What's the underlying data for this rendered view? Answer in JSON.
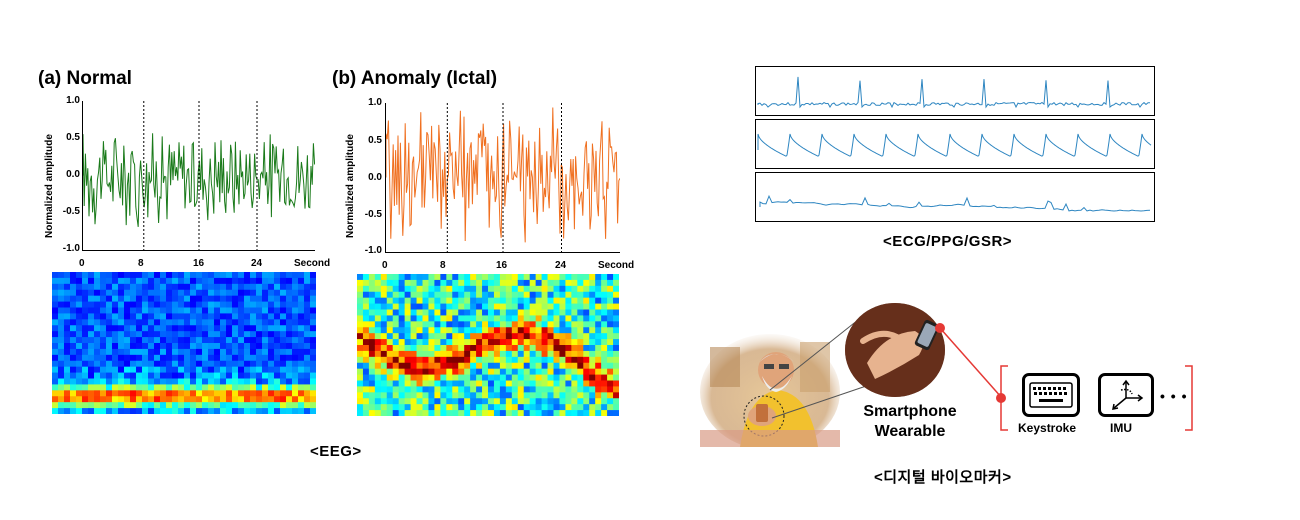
{
  "eeg": {
    "panel_a": {
      "title": "(a) Normal",
      "color": "#1a7a1a"
    },
    "panel_b": {
      "title": "(b) Anomaly (Ictal)",
      "color": "#f07020"
    },
    "ylabel": "Normalized amplitude",
    "yticks": [
      "1.0",
      "0.5",
      "0.0",
      "-0.5",
      "-1.0"
    ],
    "xticks": [
      "0",
      "8",
      "16",
      "24"
    ],
    "xunit": "Second",
    "caption": "<EEG>"
  },
  "signals": {
    "caption": "<ECG/PPG/GSR>",
    "trace_color": "#2e86c1"
  },
  "digital": {
    "device_line1": "Smartphone",
    "device_line2": "Wearable",
    "keystroke_label": "Keystroke",
    "imu_label": "IMU",
    "more": "• • •",
    "bracket_color": "#e53935",
    "caption": "<디지털 바이오마커>"
  },
  "chart_data": [
    {
      "type": "line",
      "title": "(a) Normal",
      "ylabel": "Normalized amplitude",
      "ylim": [
        -1.0,
        1.0
      ],
      "xlim": [
        0,
        30
      ],
      "x_ticks": [
        0,
        8,
        16,
        24
      ],
      "xlabel": "Second"
    },
    {
      "type": "line",
      "title": "(b) Anomaly (Ictal)",
      "ylabel": "Normalized amplitude",
      "ylim": [
        -1.0,
        1.0
      ],
      "xlim": [
        0,
        30
      ],
      "x_ticks": [
        0,
        8,
        16,
        24
      ],
      "xlabel": "Second"
    }
  ]
}
